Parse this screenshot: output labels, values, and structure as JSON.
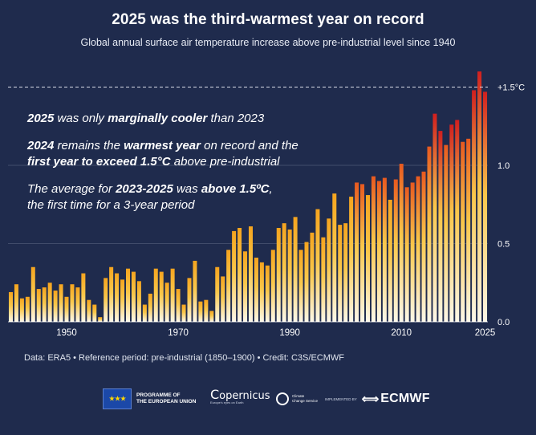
{
  "header": {
    "title": "2025 was the third-warmest year on record",
    "subtitle": "Global annual surface air temperature increase above pre-industrial level since 1940"
  },
  "annotations": {
    "a1_bold1": "2025",
    "a1_text1": " was only ",
    "a1_bold2": "marginally cooler",
    "a1_text2": " than 2023",
    "a2_bold1": "2024",
    "a2_text1": " remains the ",
    "a2_bold2": "warmest year",
    "a2_text2": " on record and the ",
    "a2_bold3": "first year to exceed 1.5°C",
    "a2_text3": " above pre-industrial",
    "a3_text1": "The average for ",
    "a3_bold1": "2023-2025",
    "a3_text2": " was ",
    "a3_bold2": "above 1.5ºC",
    "a3_text3": ", the first time for a 3-year period"
  },
  "footer": {
    "note": "Data: ERA5 • Reference period: pre-industrial (1850–1900) • Credit: C3S/ECMWF",
    "eu_line1": "PROGRAMME OF",
    "eu_line2": "THE EUROPEAN UNION",
    "copernicus": "opernicus",
    "copernicus_sub": "Europe's eyes on Earth",
    "c3s_line1": "Climate",
    "c3s_line2": "Change Service",
    "implemented_by": "IMPLEMENTED BY",
    "ecmwf": "ECMWF"
  },
  "chart_data": {
    "type": "bar",
    "x": [
      1940,
      1941,
      1942,
      1943,
      1944,
      1945,
      1946,
      1947,
      1948,
      1949,
      1950,
      1951,
      1952,
      1953,
      1954,
      1955,
      1956,
      1957,
      1958,
      1959,
      1960,
      1961,
      1962,
      1963,
      1964,
      1965,
      1966,
      1967,
      1968,
      1969,
      1970,
      1971,
      1972,
      1973,
      1974,
      1975,
      1976,
      1977,
      1978,
      1979,
      1980,
      1981,
      1982,
      1983,
      1984,
      1985,
      1986,
      1987,
      1988,
      1989,
      1990,
      1991,
      1992,
      1993,
      1994,
      1995,
      1996,
      1997,
      1998,
      1999,
      2000,
      2001,
      2002,
      2003,
      2004,
      2005,
      2006,
      2007,
      2008,
      2009,
      2010,
      2011,
      2012,
      2013,
      2014,
      2015,
      2016,
      2017,
      2018,
      2019,
      2020,
      2021,
      2022,
      2023,
      2024,
      2025
    ],
    "values": [
      0.19,
      0.24,
      0.15,
      0.16,
      0.35,
      0.21,
      0.22,
      0.25,
      0.2,
      0.24,
      0.16,
      0.24,
      0.22,
      0.31,
      0.14,
      0.11,
      0.03,
      0.28,
      0.35,
      0.31,
      0.27,
      0.34,
      0.32,
      0.26,
      0.11,
      0.18,
      0.34,
      0.32,
      0.25,
      0.34,
      0.21,
      0.11,
      0.28,
      0.39,
      0.13,
      0.14,
      0.07,
      0.35,
      0.29,
      0.46,
      0.58,
      0.6,
      0.45,
      0.61,
      0.41,
      0.38,
      0.36,
      0.46,
      0.6,
      0.63,
      0.59,
      0.67,
      0.46,
      0.51,
      0.57,
      0.72,
      0.54,
      0.66,
      0.82,
      0.62,
      0.63,
      0.8,
      0.89,
      0.88,
      0.81,
      0.93,
      0.9,
      0.92,
      0.78,
      0.91,
      1.01,
      0.86,
      0.89,
      0.93,
      0.96,
      1.12,
      1.33,
      1.22,
      1.13,
      1.26,
      1.29,
      1.15,
      1.17,
      1.48,
      1.6,
      1.47
    ],
    "reference_line": {
      "value": 1.5,
      "label": "+1.5°C"
    },
    "y_ticks": [
      {
        "value": 0,
        "label": "0.0"
      },
      {
        "value": 0.5,
        "label": "0.5"
      },
      {
        "value": 1.0,
        "label": "1.0"
      }
    ],
    "x_ticks": [
      1950,
      1970,
      1990,
      2010,
      2025
    ],
    "ylim": [
      0,
      1.6
    ],
    "xlabel": "",
    "ylabel": "",
    "colors": {
      "low": "#fdf8ea",
      "mid": "#f5a41e",
      "high": "#d01f1f",
      "ref_line": "#d9dde8",
      "grid": "#8089a3"
    }
  }
}
